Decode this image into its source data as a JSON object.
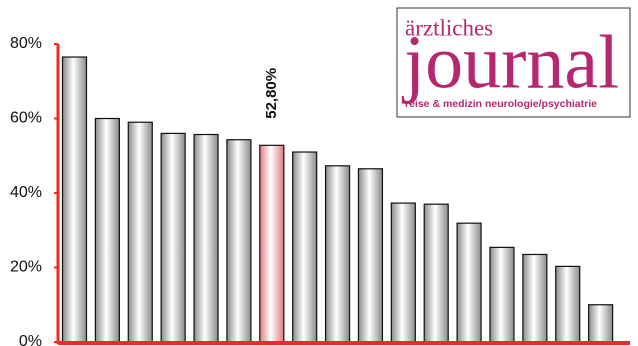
{
  "chart_data": {
    "type": "bar",
    "categories": [
      null,
      null,
      null,
      null,
      null,
      null,
      null,
      null,
      null,
      null,
      null,
      null,
      null,
      null,
      null,
      null,
      null
    ],
    "values": [
      76.5,
      60,
      59,
      56,
      55.7,
      54.3,
      52.8,
      51,
      47.3,
      46.5,
      37.3,
      37,
      31.9,
      25.4,
      23.5,
      20.3,
      10
    ],
    "value_labels": [
      null,
      null,
      null,
      null,
      null,
      null,
      "52,80%",
      null,
      null,
      null,
      null,
      null,
      null,
      null,
      null,
      null,
      null
    ],
    "colors": [
      "#8a8a8a",
      "#8a8a8a",
      "#8a8a8a",
      "#8a8a8a",
      "#8a8a8a",
      "#8a8a8a",
      "#e07a85",
      "#8a8a8a",
      "#8a8a8a",
      "#8a8a8a",
      "#8a8a8a",
      "#8a8a8a",
      "#8a8a8a",
      "#8a8a8a",
      "#8a8a8a",
      "#8a8a8a",
      "#8a8a8a"
    ],
    "axis_color": "#ee2a24",
    "ylim": [
      0,
      80
    ],
    "yticks": [
      {
        "value": 0,
        "label": "0%"
      },
      {
        "value": 20,
        "label": "20%"
      },
      {
        "value": 40,
        "label": "40%"
      },
      {
        "value": 60,
        "label": "60%"
      },
      {
        "value": 80,
        "label": "80%"
      }
    ],
    "grid": false
  },
  "logo": {
    "line1": "ärztliches",
    "line2": "journal",
    "tagline": "reise & medizin neurologie/psychiatrie"
  }
}
